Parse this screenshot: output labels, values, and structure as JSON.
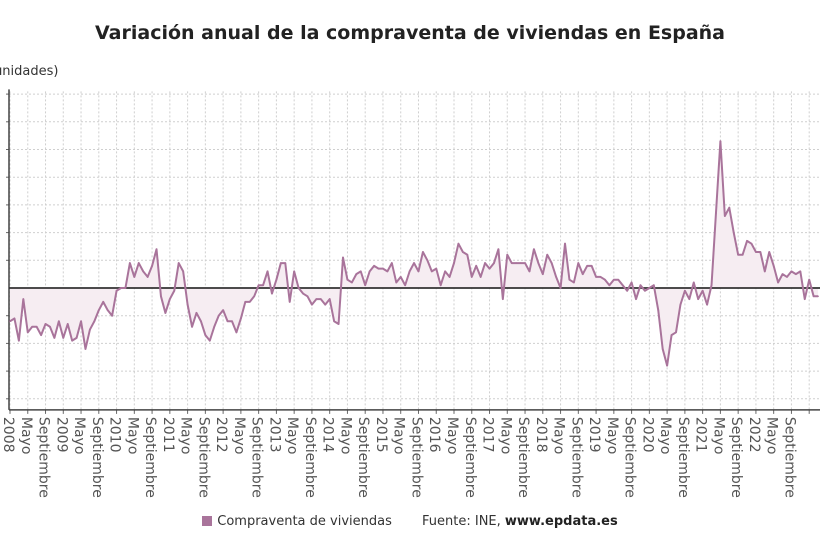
{
  "chart_data": {
    "type": "area",
    "title": "Variación anual de la compraventa de viviendas en España",
    "ylabel": "(unidades)",
    "xlabel": "",
    "x_start": "2008-01",
    "x_end": "2023-03",
    "x_tick_labels_pattern": [
      "{year}",
      "Mayo",
      "Septiembre"
    ],
    "years": [
      "2008",
      "2009",
      "2010",
      "2011",
      "2012",
      "2013",
      "2014",
      "2015",
      "2016",
      "2017",
      "2018",
      "2019",
      "2020",
      "2021",
      "2022"
    ],
    "month_labels": {
      "may": "Mayo",
      "sep": "Septiembre"
    },
    "ylim": [
      -44,
      71
    ],
    "grid": true,
    "series": [
      {
        "name": "Compraventa de viviendas",
        "color": "#a9749b",
        "fill": "#f6edf2",
        "values": [
          -12,
          -11,
          -19,
          -4,
          -16,
          -14,
          -14,
          -17,
          -13,
          -14,
          -18,
          -12,
          -18,
          -13,
          -19,
          -18,
          -12,
          -22,
          -15,
          -12,
          -8,
          -5,
          -8,
          -10,
          -1,
          0,
          0,
          9,
          4,
          9,
          6,
          4,
          8,
          14,
          -3,
          -9,
          -4,
          -1,
          9,
          6,
          -6,
          -14,
          -9,
          -12,
          -17,
          -19,
          -14,
          -10,
          -8,
          -12,
          -12,
          -16,
          -11,
          -5,
          -5,
          -3,
          1,
          1,
          6,
          -2,
          3,
          9,
          9,
          -5,
          6,
          0,
          -2,
          -3,
          -6,
          -4,
          -4,
          -6,
          -4,
          -12,
          -13,
          11,
          3,
          2,
          5,
          6,
          1,
          6,
          8,
          7,
          7,
          6,
          9,
          2,
          4,
          1,
          6,
          9,
          6,
          13,
          10,
          6,
          7,
          1,
          6,
          4,
          9,
          16,
          13,
          12,
          4,
          8,
          4,
          9,
          7,
          9,
          14,
          -4,
          12,
          9,
          9,
          9,
          9,
          6,
          14,
          9,
          5,
          12,
          9,
          4,
          0,
          16,
          3,
          2,
          9,
          5,
          8,
          8,
          4,
          4,
          3,
          1,
          3,
          3,
          1,
          -1,
          2,
          -4,
          1,
          -1,
          0,
          1,
          -8,
          -22,
          -28,
          -17,
          -16,
          -6,
          -1,
          -4,
          2,
          -4,
          -1,
          -6,
          1,
          27,
          53,
          26,
          29,
          20,
          12,
          12,
          17,
          16,
          13,
          13,
          6,
          13,
          8,
          2,
          5,
          4,
          6,
          5,
          6,
          -4,
          3,
          -3,
          -3
        ]
      }
    ]
  },
  "legend": {
    "series_label": "Compraventa de viviendas",
    "source_prefix": "Fuente: INE, ",
    "source_site": "www.epdata.es"
  }
}
